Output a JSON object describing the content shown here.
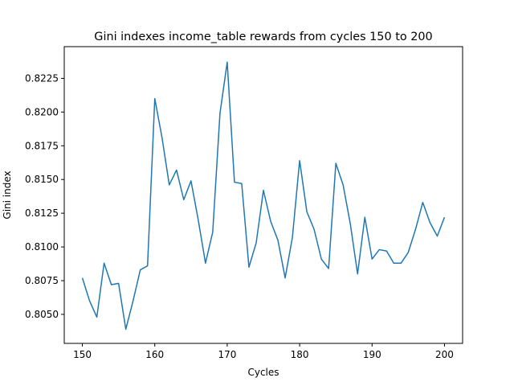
{
  "chart_data": {
    "type": "line",
    "title": "Gini indexes income_table rewards from cycles 150 to 200",
    "xlabel": "Cycles",
    "ylabel": "Gini index",
    "xlim": [
      147.5,
      202.5
    ],
    "ylim": [
      0.80285,
      0.82485
    ],
    "xticks": [
      150,
      160,
      170,
      180,
      190,
      200
    ],
    "yticks": [
      0.805,
      0.8075,
      0.81,
      0.8125,
      0.815,
      0.8175,
      0.82,
      0.8225
    ],
    "ytick_labels": [
      "0.8050",
      "0.8075",
      "0.8100",
      "0.8125",
      "0.8150",
      "0.8175",
      "0.8200",
      "0.8225"
    ],
    "grid": false,
    "series": [
      {
        "color": "#1f77b4",
        "x": [
          150,
          151,
          152,
          153,
          154,
          155,
          156,
          157,
          158,
          159,
          160,
          161,
          162,
          163,
          164,
          165,
          166,
          167,
          168,
          169,
          170,
          171,
          172,
          173,
          174,
          175,
          176,
          177,
          178,
          179,
          180,
          181,
          182,
          183,
          184,
          185,
          186,
          187,
          188,
          189,
          190,
          191,
          192,
          193,
          194,
          195,
          196,
          197,
          198,
          199,
          200
        ],
        "values": [
          0.8077,
          0.806,
          0.8048,
          0.8088,
          0.8072,
          0.8073,
          0.8039,
          0.806,
          0.8083,
          0.8086,
          0.821,
          0.8181,
          0.8146,
          0.8157,
          0.8135,
          0.8149,
          0.812,
          0.8088,
          0.8111,
          0.8199,
          0.8237,
          0.8148,
          0.8147,
          0.8085,
          0.8103,
          0.8142,
          0.8119,
          0.8105,
          0.8077,
          0.8107,
          0.8164,
          0.8126,
          0.8113,
          0.8091,
          0.8084,
          0.8162,
          0.8146,
          0.8117,
          0.808,
          0.8122,
          0.8091,
          0.8098,
          0.8097,
          0.8088,
          0.8088,
          0.8096,
          0.8113,
          0.8133,
          0.8118,
          0.8108,
          0.8122
        ]
      }
    ]
  }
}
